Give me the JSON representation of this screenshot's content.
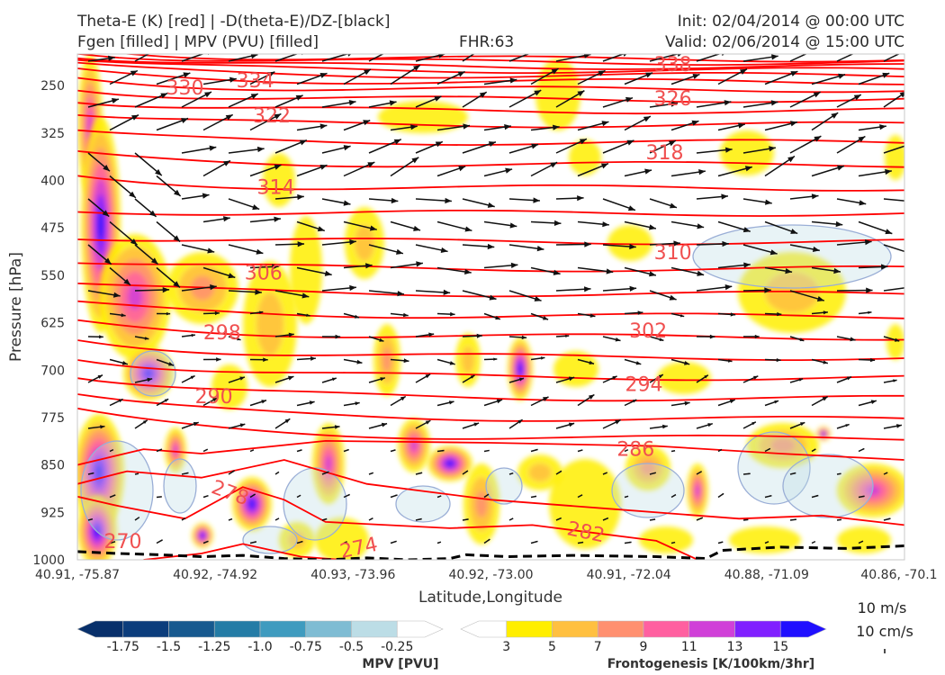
{
  "header": {
    "title_left_1": "Theta-E (K) [red] | -D(theta-E)/DZ-[black]",
    "title_left_2": "Fgen [filled] | MPV (PVU) [filled]",
    "fhr": "FHR:63",
    "init": "Init: 02/04/2014 @ 00:00 UTC",
    "valid": "Valid: 02/06/2014 @ 15:00 UTC"
  },
  "chart_data": {
    "type": "cross-section",
    "xlabel": "Latitude,Longitude",
    "ylabel": "Pressure [hPa]",
    "x_ticks": [
      "40.91, -75.87",
      "40.92, -74.92",
      "40.93, -73.96",
      "40.92, -73.00",
      "40.91, -72.04",
      "40.88, -71.09",
      "40.86, -70.1"
    ],
    "y_ticks": [
      250,
      325,
      400,
      475,
      550,
      625,
      700,
      775,
      850,
      925,
      1000
    ],
    "ylim": [
      1000,
      200
    ],
    "theta_e_contour_labels": [
      {
        "value": "330",
        "x_frac": 0.13,
        "p": 253,
        "angle": 0
      },
      {
        "value": "334",
        "x_frac": 0.215,
        "p": 241,
        "angle": 0
      },
      {
        "value": "322",
        "x_frac": 0.235,
        "p": 297,
        "angle": 0
      },
      {
        "value": "338",
        "x_frac": 0.72,
        "p": 216,
        "angle": 0
      },
      {
        "value": "326",
        "x_frac": 0.72,
        "p": 270,
        "angle": 0
      },
      {
        "value": "318",
        "x_frac": 0.71,
        "p": 355,
        "angle": 0
      },
      {
        "value": "314",
        "x_frac": 0.24,
        "p": 410,
        "angle": 0
      },
      {
        "value": "310",
        "x_frac": 0.72,
        "p": 513,
        "angle": 0
      },
      {
        "value": "306",
        "x_frac": 0.225,
        "p": 545,
        "angle": 0
      },
      {
        "value": "302",
        "x_frac": 0.69,
        "p": 637,
        "angle": 0
      },
      {
        "value": "298",
        "x_frac": 0.175,
        "p": 640,
        "angle": 0
      },
      {
        "value": "294",
        "x_frac": 0.685,
        "p": 722,
        "angle": 0
      },
      {
        "value": "290",
        "x_frac": 0.165,
        "p": 741,
        "angle": 0
      },
      {
        "value": "286",
        "x_frac": 0.675,
        "p": 824,
        "angle": 0
      },
      {
        "value": "278",
        "x_frac": 0.185,
        "p": 893,
        "angle": 20
      },
      {
        "value": "282",
        "x_frac": 0.615,
        "p": 955,
        "angle": 12
      },
      {
        "value": "274",
        "x_frac": 0.34,
        "p": 980,
        "angle": -12
      },
      {
        "value": "270",
        "x_frac": 0.055,
        "p": 970,
        "angle": 0
      }
    ],
    "theta_e_color": "#ff0000",
    "contour_label_color": "#f05050",
    "mpv_colorbar": {
      "label": "MPV [PVU]",
      "tick_labels": [
        "-1.75",
        "-1.5",
        "-1.25",
        "-1.0",
        "-0.75",
        "-0.5",
        "-0.25"
      ],
      "colors": [
        "#08306b",
        "#0c3d7c",
        "#17598f",
        "#247ca6",
        "#3f9bbf",
        "#7fbcd3",
        "#bcdde6",
        "#ffffff"
      ]
    },
    "fgen_colorbar": {
      "label": "Frontogenesis [K/100km/3hr]",
      "tick_labels": [
        "3",
        "5",
        "7",
        "9",
        "11",
        "13",
        "15"
      ],
      "colors": [
        "#ffffff",
        "#ffee00",
        "#ffc040",
        "#ff9070",
        "#ff60a0",
        "#d040d8",
        "#8020ff",
        "#2010ff"
      ]
    },
    "wind_reference": {
      "horizontal": "10 m/s",
      "vertical": "10 cm/s"
    }
  }
}
